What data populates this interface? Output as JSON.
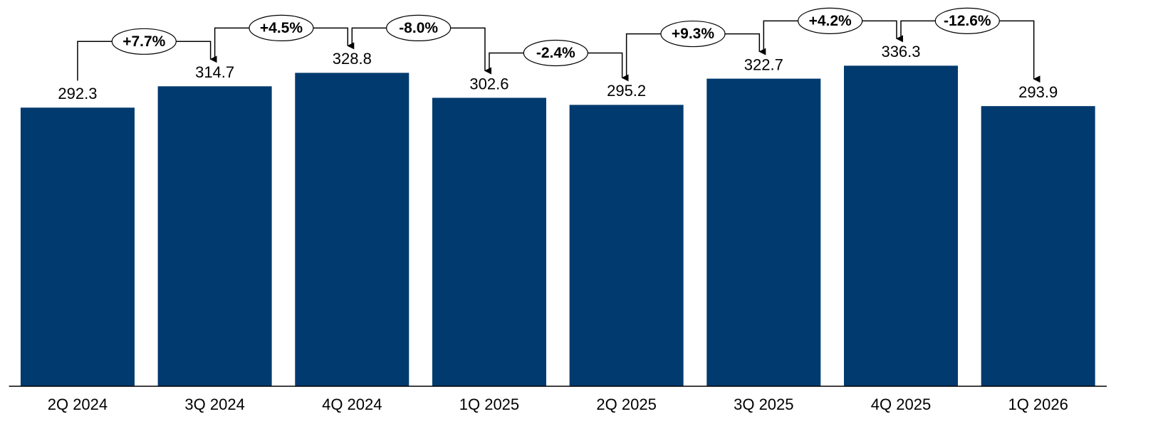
{
  "chart_data": {
    "type": "bar",
    "categories": [
      "2Q 2024",
      "3Q 2024",
      "4Q 2024",
      "1Q 2025",
      "2Q 2025",
      "3Q 2025",
      "4Q 2025",
      "1Q 2026"
    ],
    "values": [
      292.3,
      314.7,
      328.8,
      302.6,
      295.2,
      322.7,
      336.3,
      293.9
    ],
    "color": "#003a6e",
    "ylim": [
      0,
      400
    ],
    "changes": {
      "values": [
        7.7,
        4.5,
        -8.0,
        -2.4,
        9.3,
        4.2,
        -12.6
      ],
      "value_labels": [
        "+7.7%",
        "+4.5%",
        "-8.0%",
        "-2.4%",
        "+9.3%",
        "+4.2%",
        "-12.6%"
      ],
      "positive_color": "#1a8a1a",
      "negative_color": "#c0410f"
    }
  }
}
